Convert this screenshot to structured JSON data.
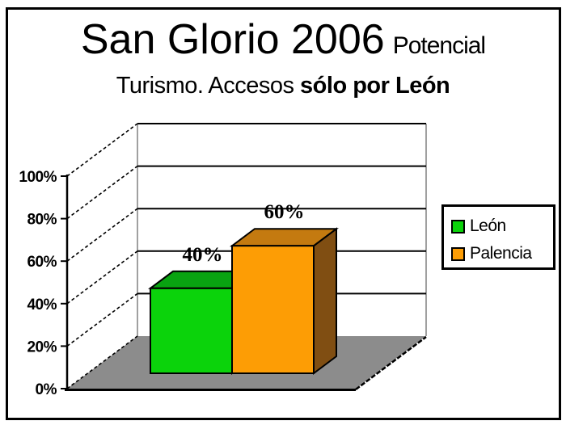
{
  "title": {
    "line1_main": "San Glorio 2006",
    "line1_suffix": "Potencial",
    "line2_regular": "Turismo. Accesos ",
    "line2_bold": "sólo por León"
  },
  "chart_data": {
    "type": "bar",
    "style": "3d",
    "title": "San Glorio 2006 Potencial Turismo. Accesos sólo por León",
    "categories": [
      "León",
      "Palencia"
    ],
    "values": [
      40,
      60
    ],
    "value_labels": [
      "40%",
      "60%"
    ],
    "xlabel": "",
    "ylabel": "",
    "ylim": [
      0,
      100
    ],
    "grid": true,
    "legend_position": "right",
    "y_ticks": {
      "values": [
        0,
        20,
        40,
        60,
        80,
        100
      ],
      "labels": [
        "0%",
        "20%",
        "40%",
        "60%",
        "80%",
        "100%"
      ]
    },
    "bars": [
      {
        "name": "leon",
        "value": 40,
        "label": "40%",
        "color_front": "#0bd30b",
        "color_top": "#09a311",
        "color_side": "#078a0e"
      },
      {
        "name": "palencia",
        "value": 60,
        "label": "60%",
        "color_front": "#fd9d05",
        "color_top": "#c47a10",
        "color_side": "#804e12"
      }
    ],
    "wall_color": "#ffffff",
    "wall_edge_color": "#a0a0a0",
    "floor_color": "#8c8c8c",
    "line_color": "#000000"
  },
  "legend": {
    "items": [
      {
        "label": "León",
        "color": "#0bd30b"
      },
      {
        "label": "Palencia",
        "color": "#fd9d05"
      }
    ]
  }
}
